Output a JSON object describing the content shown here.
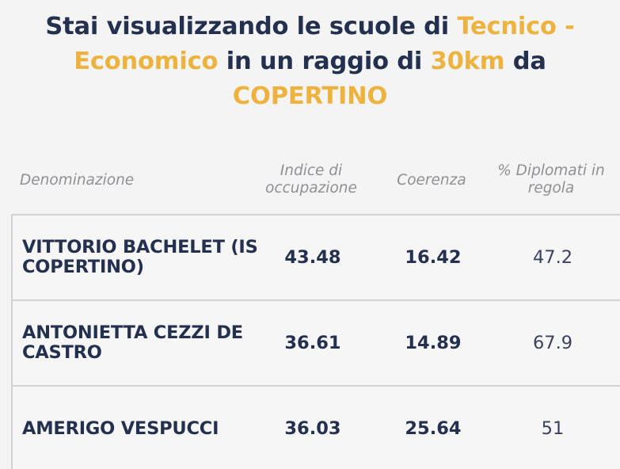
{
  "title": {
    "part1": "Stai visualizzando le scuole di ",
    "type": "Tecnico - Economico",
    "part2": " in un raggio di ",
    "radius": "30km",
    "part3": " da",
    "city": "COPERTINO"
  },
  "columns": {
    "name": "Denominazione",
    "index": "Indice di occupazione",
    "coherence": "Coerenza",
    "graduates": "% Diplomati in regola"
  },
  "rows": [
    {
      "name": "VITTORIO BACHELET (IS COPERTINO)",
      "index": "43.48",
      "coherence": "16.42",
      "graduates": "47.2"
    },
    {
      "name": "ANTONIETTA CEZZI DE CASTRO",
      "index": "36.61",
      "coherence": "14.89",
      "graduates": "67.9"
    },
    {
      "name": "AMERIGO VESPUCCI",
      "index": "36.03",
      "coherence": "25.64",
      "graduates": "51"
    }
  ],
  "colors": {
    "primary": "#24304f",
    "accent": "#eeb33f",
    "muted": "#8f8f95",
    "border": "#d3d3d5"
  }
}
